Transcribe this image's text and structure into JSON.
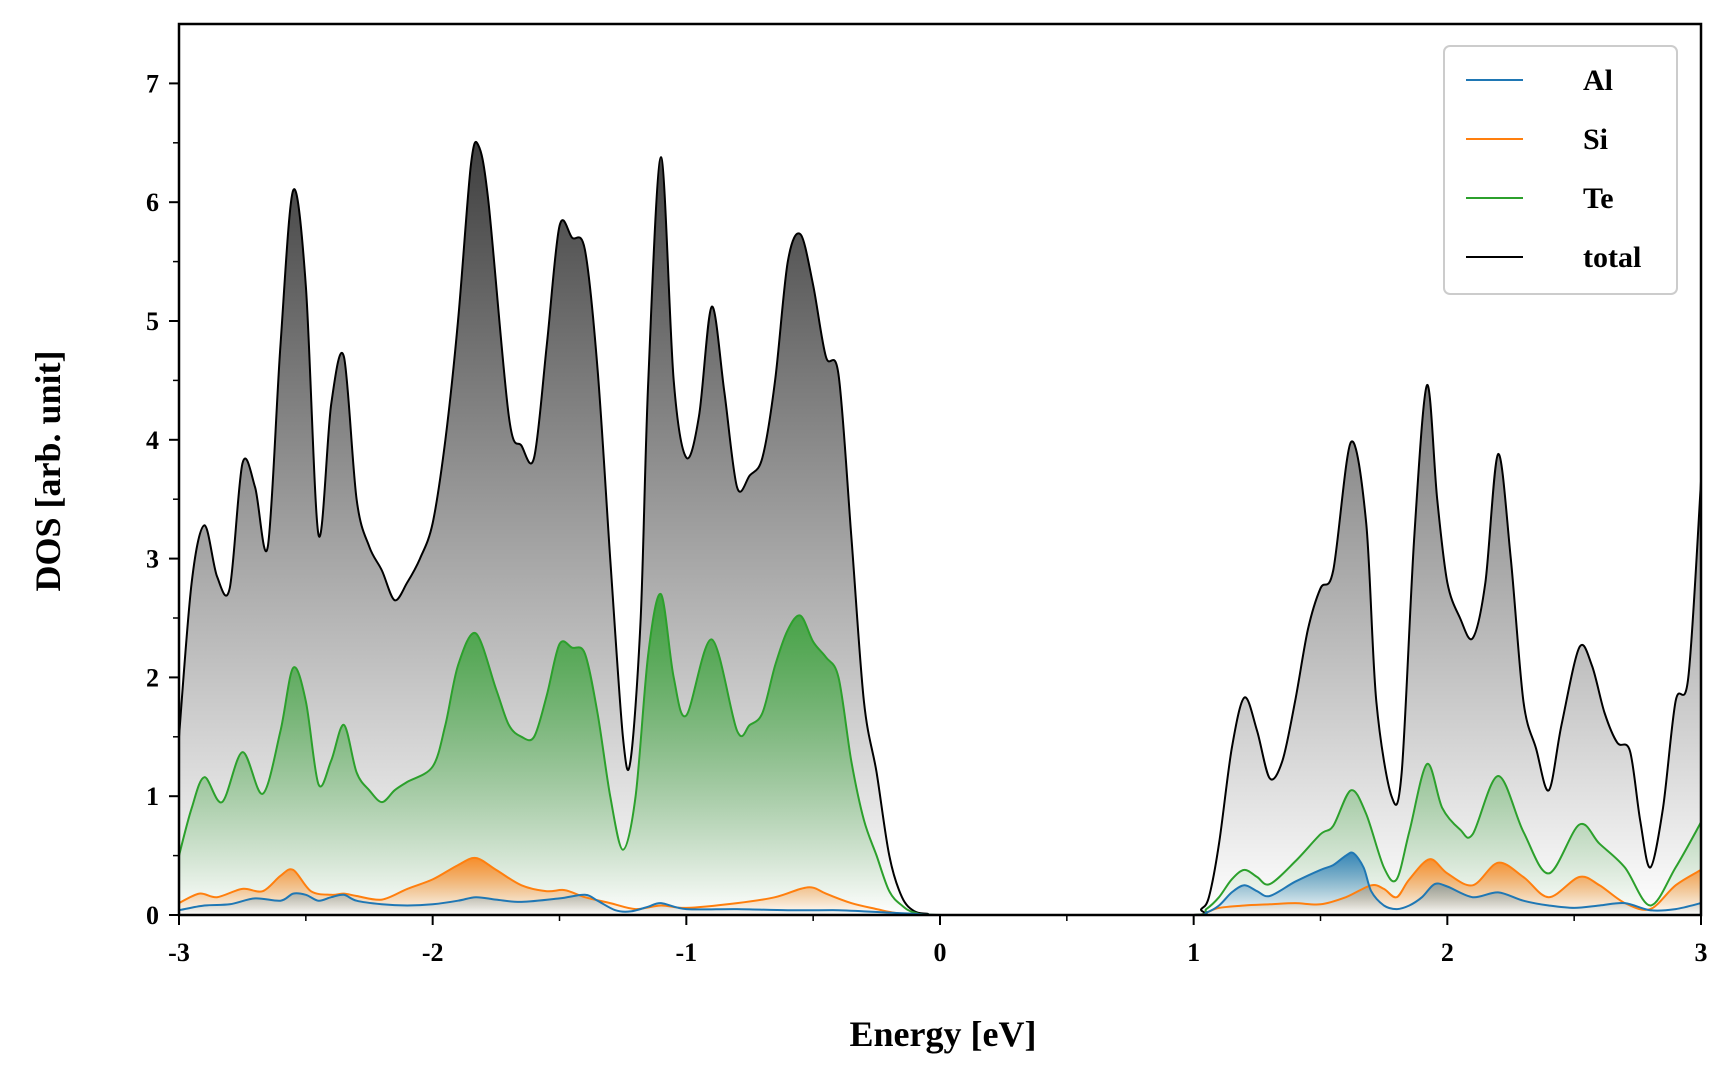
{
  "chart_data": {
    "type": "line",
    "xlabel": "Energy [eV]",
    "ylabel": "DOS [arb. unit]",
    "xlim": [
      -3,
      3
    ],
    "ylim": [
      0,
      7.5
    ],
    "xticks": [
      -3,
      -2,
      -1,
      0,
      1,
      2,
      3
    ],
    "xtick_labels": [
      "-3",
      "-2",
      "-1",
      "0",
      "1",
      "2",
      "3"
    ],
    "yticks": [
      0,
      1,
      2,
      3,
      4,
      5,
      6,
      7
    ],
    "ytick_labels": [
      "0",
      "1",
      "2",
      "3",
      "4",
      "5",
      "6",
      "7"
    ],
    "grid": false,
    "legend_position": "top-right",
    "fill_under_curves": true,
    "series": [
      {
        "name": "Al",
        "color": "#1f77b4",
        "x": [
          -3.0,
          -2.9,
          -2.8,
          -2.7,
          -2.6,
          -2.55,
          -2.5,
          -2.45,
          -2.4,
          -2.35,
          -2.3,
          -2.2,
          -2.1,
          -2.0,
          -1.9,
          -1.83,
          -1.75,
          -1.65,
          -1.5,
          -1.4,
          -1.35,
          -1.28,
          -1.22,
          -1.15,
          -1.1,
          -1.0,
          -0.8,
          -0.6,
          -0.4,
          -0.3,
          -0.2,
          -0.1,
          0.0,
          0.5,
          1.0,
          1.05,
          1.1,
          1.15,
          1.2,
          1.25,
          1.3,
          1.4,
          1.5,
          1.55,
          1.6,
          1.63,
          1.67,
          1.7,
          1.75,
          1.8,
          1.85,
          1.9,
          1.95,
          2.0,
          2.1,
          2.2,
          2.3,
          2.4,
          2.5,
          2.6,
          2.7,
          2.8,
          2.9,
          3.0
        ],
        "values": [
          0.04,
          0.08,
          0.09,
          0.14,
          0.12,
          0.18,
          0.17,
          0.12,
          0.15,
          0.17,
          0.12,
          0.09,
          0.08,
          0.09,
          0.12,
          0.15,
          0.13,
          0.11,
          0.14,
          0.17,
          0.12,
          0.04,
          0.03,
          0.07,
          0.1,
          0.05,
          0.05,
          0.04,
          0.04,
          0.03,
          0.02,
          0.01,
          0.0,
          0.0,
          0.0,
          0.02,
          0.08,
          0.19,
          0.25,
          0.2,
          0.16,
          0.28,
          0.38,
          0.42,
          0.5,
          0.52,
          0.4,
          0.2,
          0.08,
          0.05,
          0.08,
          0.15,
          0.26,
          0.24,
          0.15,
          0.19,
          0.12,
          0.08,
          0.06,
          0.08,
          0.1,
          0.04,
          0.05,
          0.1
        ]
      },
      {
        "name": "Si",
        "color": "#ff7f0e",
        "x": [
          -3.0,
          -2.92,
          -2.85,
          -2.75,
          -2.67,
          -2.6,
          -2.55,
          -2.48,
          -2.4,
          -2.35,
          -2.3,
          -2.2,
          -2.1,
          -2.0,
          -1.9,
          -1.83,
          -1.75,
          -1.65,
          -1.55,
          -1.48,
          -1.4,
          -1.3,
          -1.2,
          -1.1,
          -1.0,
          -0.8,
          -0.65,
          -0.55,
          -0.5,
          -0.45,
          -0.35,
          -0.25,
          -0.15,
          0.0,
          0.5,
          1.0,
          1.05,
          1.1,
          1.2,
          1.3,
          1.4,
          1.5,
          1.6,
          1.7,
          1.75,
          1.8,
          1.85,
          1.93,
          2.0,
          2.1,
          2.2,
          2.3,
          2.4,
          2.52,
          2.6,
          2.7,
          2.8,
          2.9,
          3.0
        ],
        "values": [
          0.1,
          0.18,
          0.15,
          0.22,
          0.2,
          0.33,
          0.38,
          0.2,
          0.17,
          0.18,
          0.16,
          0.13,
          0.22,
          0.3,
          0.42,
          0.48,
          0.38,
          0.25,
          0.2,
          0.21,
          0.15,
          0.1,
          0.05,
          0.08,
          0.06,
          0.1,
          0.15,
          0.22,
          0.23,
          0.18,
          0.1,
          0.05,
          0.01,
          0.0,
          0.0,
          0.0,
          0.02,
          0.06,
          0.08,
          0.09,
          0.1,
          0.09,
          0.15,
          0.25,
          0.22,
          0.15,
          0.3,
          0.47,
          0.35,
          0.25,
          0.44,
          0.32,
          0.15,
          0.32,
          0.25,
          0.1,
          0.05,
          0.25,
          0.38
        ]
      },
      {
        "name": "Te",
        "color": "#2ca02c",
        "x": [
          -3.0,
          -2.95,
          -2.9,
          -2.83,
          -2.75,
          -2.67,
          -2.6,
          -2.55,
          -2.5,
          -2.45,
          -2.4,
          -2.35,
          -2.3,
          -2.25,
          -2.2,
          -2.15,
          -2.1,
          -2.0,
          -1.95,
          -1.9,
          -1.83,
          -1.75,
          -1.7,
          -1.65,
          -1.6,
          -1.55,
          -1.5,
          -1.45,
          -1.4,
          -1.35,
          -1.3,
          -1.25,
          -1.2,
          -1.15,
          -1.1,
          -1.05,
          -1.0,
          -0.9,
          -0.8,
          -0.75,
          -0.7,
          -0.65,
          -0.6,
          -0.55,
          -0.5,
          -0.45,
          -0.4,
          -0.35,
          -0.3,
          -0.25,
          -0.2,
          -0.15,
          -0.1,
          0.0,
          0.5,
          1.0,
          1.05,
          1.1,
          1.15,
          1.2,
          1.25,
          1.3,
          1.4,
          1.5,
          1.55,
          1.62,
          1.68,
          1.75,
          1.8,
          1.85,
          1.92,
          1.98,
          2.05,
          2.1,
          2.2,
          2.3,
          2.4,
          2.52,
          2.6,
          2.7,
          2.8,
          2.9,
          3.0
        ],
        "values": [
          0.5,
          0.9,
          1.16,
          0.95,
          1.37,
          1.02,
          1.55,
          2.08,
          1.8,
          1.1,
          1.3,
          1.6,
          1.2,
          1.05,
          0.95,
          1.05,
          1.12,
          1.25,
          1.6,
          2.1,
          2.37,
          1.9,
          1.6,
          1.5,
          1.5,
          1.85,
          2.28,
          2.25,
          2.2,
          1.7,
          1.0,
          0.55,
          1.0,
          2.2,
          2.7,
          2.0,
          1.68,
          2.32,
          1.55,
          1.6,
          1.7,
          2.1,
          2.4,
          2.52,
          2.3,
          2.17,
          2.0,
          1.3,
          0.8,
          0.5,
          0.2,
          0.08,
          0.02,
          0.0,
          0.0,
          0.0,
          0.05,
          0.15,
          0.3,
          0.38,
          0.32,
          0.26,
          0.45,
          0.68,
          0.75,
          1.05,
          0.85,
          0.4,
          0.3,
          0.7,
          1.27,
          0.9,
          0.72,
          0.68,
          1.17,
          0.7,
          0.35,
          0.76,
          0.6,
          0.4,
          0.08,
          0.4,
          0.78
        ]
      },
      {
        "name": "total",
        "color": "#000000",
        "x": [
          -3.0,
          -2.95,
          -2.9,
          -2.85,
          -2.8,
          -2.75,
          -2.7,
          -2.65,
          -2.6,
          -2.55,
          -2.5,
          -2.45,
          -2.4,
          -2.35,
          -2.3,
          -2.25,
          -2.2,
          -2.15,
          -2.1,
          -2.05,
          -2.0,
          -1.95,
          -1.9,
          -1.85,
          -1.82,
          -1.78,
          -1.7,
          -1.65,
          -1.6,
          -1.55,
          -1.5,
          -1.45,
          -1.4,
          -1.35,
          -1.3,
          -1.25,
          -1.22,
          -1.18,
          -1.15,
          -1.1,
          -1.05,
          -1.0,
          -0.95,
          -0.9,
          -0.85,
          -0.8,
          -0.75,
          -0.7,
          -0.65,
          -0.6,
          -0.55,
          -0.5,
          -0.45,
          -0.4,
          -0.35,
          -0.3,
          -0.25,
          -0.2,
          -0.15,
          -0.1,
          -0.05,
          0.0,
          0.5,
          1.0,
          1.03,
          1.06,
          1.1,
          1.15,
          1.2,
          1.25,
          1.3,
          1.35,
          1.4,
          1.45,
          1.5,
          1.55,
          1.62,
          1.68,
          1.72,
          1.78,
          1.82,
          1.87,
          1.92,
          1.96,
          2.0,
          2.05,
          2.1,
          2.15,
          2.2,
          2.25,
          2.3,
          2.35,
          2.4,
          2.45,
          2.52,
          2.57,
          2.62,
          2.67,
          2.72,
          2.76,
          2.8,
          2.85,
          2.9,
          2.95,
          3.0
        ],
        "values": [
          1.5,
          2.8,
          3.28,
          2.85,
          2.75,
          3.8,
          3.6,
          3.1,
          4.8,
          6.1,
          5.3,
          3.2,
          4.3,
          4.7,
          3.5,
          3.1,
          2.9,
          2.65,
          2.8,
          3.0,
          3.3,
          4.0,
          5.0,
          6.3,
          6.48,
          6.0,
          4.2,
          3.95,
          3.85,
          4.8,
          5.8,
          5.7,
          5.6,
          4.6,
          3.0,
          1.5,
          1.3,
          2.5,
          4.5,
          6.38,
          4.5,
          3.85,
          4.2,
          5.12,
          4.4,
          3.6,
          3.7,
          3.85,
          4.5,
          5.5,
          5.73,
          5.3,
          4.7,
          4.55,
          3.2,
          1.8,
          1.2,
          0.5,
          0.15,
          0.03,
          0.01,
          0.0,
          0.0,
          0.0,
          0.05,
          0.15,
          0.6,
          1.4,
          1.83,
          1.55,
          1.15,
          1.3,
          1.8,
          2.4,
          2.75,
          2.9,
          3.98,
          3.3,
          1.8,
          1.0,
          1.2,
          3.2,
          4.46,
          3.5,
          2.8,
          2.5,
          2.33,
          2.8,
          3.88,
          3.0,
          1.8,
          1.4,
          1.05,
          1.6,
          2.25,
          2.1,
          1.7,
          1.45,
          1.38,
          0.8,
          0.4,
          0.9,
          1.8,
          2.0,
          3.65
        ]
      }
    ]
  }
}
